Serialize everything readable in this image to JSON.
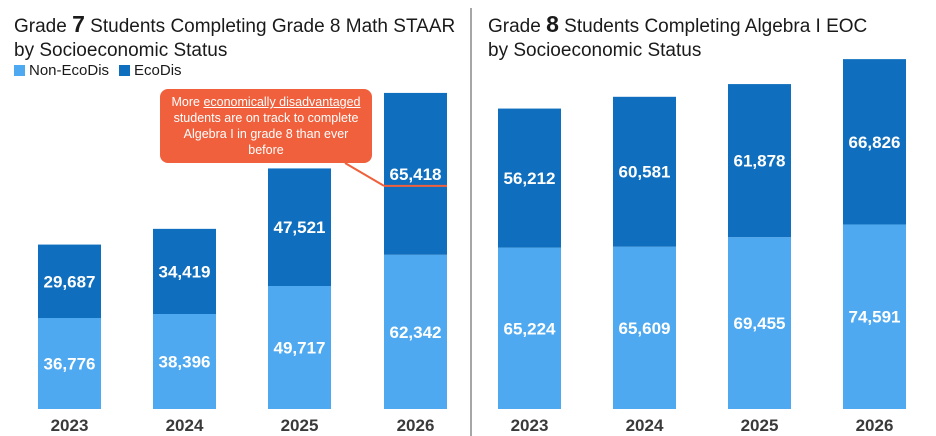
{
  "left_title": {
    "prefix": "Grade ",
    "grade": "7",
    "suffix": " Students Completing Grade 8 Math STAAR",
    "line2": "by Socioeconomic Status"
  },
  "right_title": {
    "prefix": "Grade ",
    "grade": "8",
    "suffix": " Students Completing Algebra I EOC",
    "line2": "by Socioeconomic Status"
  },
  "legend": {
    "non_ecodis": "Non-EcoDis",
    "ecodis": "EcoDis"
  },
  "callout": {
    "part1": "More ",
    "underlined": "economically disadvantaged",
    "part2": " students are on track to complete Algebra I in grade 8 than ever before"
  },
  "colors": {
    "non_ecodis": "#4ea9f0",
    "ecodis": "#0f6ebd",
    "callout": "#f0603c"
  },
  "chart_data": [
    {
      "type": "bar",
      "stacked": true,
      "title": "Grade 7 Students Completing Grade 8 Math STAAR by Socioeconomic Status",
      "categories": [
        "2023",
        "2024",
        "2025",
        "2026"
      ],
      "series": [
        {
          "name": "Non-EcoDis",
          "values": [
            36776,
            38396,
            49717,
            62342
          ],
          "labels": [
            "36,776",
            "38,396",
            "49,717",
            "62,342"
          ]
        },
        {
          "name": "EcoDis",
          "values": [
            29687,
            34419,
            47521,
            65418
          ],
          "labels": [
            "29,687",
            "34,419",
            "47,521",
            "65,418"
          ]
        }
      ],
      "ylim": [
        0,
        155000
      ],
      "legend": "top-left",
      "grid": false
    },
    {
      "type": "bar",
      "stacked": true,
      "title": "Grade 8 Students Completing Algebra I EOC by Socioeconomic Status",
      "categories": [
        "2023",
        "2024",
        "2025",
        "2026"
      ],
      "series": [
        {
          "name": "Non-EcoDis",
          "values": [
            65224,
            65609,
            69455,
            74591
          ],
          "labels": [
            "65,224",
            "65,609",
            "69,455",
            "74,591"
          ]
        },
        {
          "name": "EcoDis",
          "values": [
            56212,
            60581,
            61878,
            66826
          ],
          "labels": [
            "56,212",
            "60,581",
            "61,878",
            "66,826"
          ]
        }
      ],
      "ylim": [
        0,
        155000
      ],
      "grid": false
    }
  ]
}
